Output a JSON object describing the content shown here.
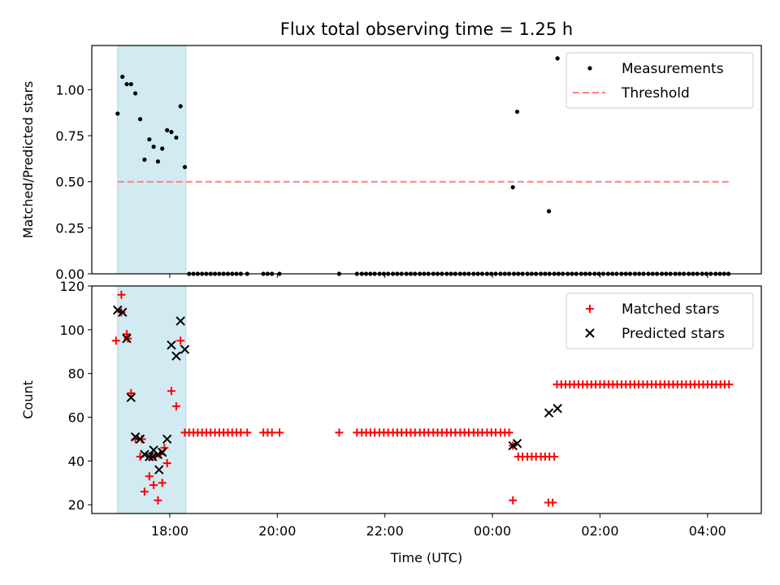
{
  "title": "Flux total observing time = 1.25 h",
  "colors": {
    "shade": "#add8e6",
    "threshold": "#ff8080",
    "matched": "#ff0000",
    "predicted": "#000000",
    "measurement": "#000000"
  },
  "chart_data": [
    {
      "type": "scatter",
      "id": "ratio",
      "ylabel": "Matched/Predicted stars",
      "xlabel": "",
      "xlim": [
        16.55,
        29.0
      ],
      "ylim": [
        0.0,
        1.24
      ],
      "yticks": [
        0.0,
        0.25,
        0.5,
        0.75,
        1.0
      ],
      "ytick_labels": [
        "0.00",
        "0.25",
        "0.50",
        "0.75",
        "1.00"
      ],
      "shaded_region_hours": [
        17.03,
        18.3
      ],
      "legend_position": "upper right",
      "legend": [
        "Measurements",
        "Threshold"
      ],
      "threshold": {
        "name": "Threshold",
        "value": 0.5,
        "x_range": [
          17.03,
          28.4
        ]
      },
      "series": [
        {
          "name": "Measurements",
          "x": [
            17.03,
            17.12,
            17.2,
            17.28,
            17.36,
            17.45,
            17.53,
            17.62,
            17.7,
            17.78,
            17.86,
            17.95,
            18.03,
            18.12,
            18.2,
            18.28,
            18.36,
            18.44,
            18.52,
            18.6,
            18.68,
            18.76,
            18.84,
            18.92,
            19.0,
            19.08,
            19.16,
            19.24,
            19.32,
            19.44,
            19.74,
            19.82,
            19.9,
            20.04,
            21.15,
            21.48,
            21.57,
            21.65,
            21.73,
            21.81,
            21.9,
            21.98,
            22.06,
            22.15,
            22.23,
            22.31,
            22.4,
            22.48,
            22.56,
            22.65,
            22.73,
            22.81,
            22.9,
            22.98,
            23.06,
            23.15,
            23.23,
            23.31,
            23.4,
            23.48,
            23.56,
            23.65,
            23.73,
            23.81,
            23.9,
            23.98,
            24.06,
            24.15,
            24.23,
            24.31,
            24.4,
            24.48,
            24.56,
            24.65,
            24.73,
            24.81,
            24.9,
            24.98,
            25.06,
            25.15,
            25.23,
            25.31,
            25.4,
            25.48,
            25.56,
            25.65,
            25.73,
            25.81,
            25.9,
            25.98,
            26.06,
            26.15,
            26.23,
            26.31,
            26.4,
            26.48,
            26.56,
            26.65,
            26.73,
            26.81,
            26.9,
            26.98,
            27.06,
            27.15,
            27.23,
            27.31,
            27.4,
            27.48,
            27.56,
            27.65,
            27.73,
            27.81,
            27.9,
            27.98,
            28.06,
            28.15,
            28.23,
            28.31,
            28.39,
            24.38,
            24.46,
            25.05,
            25.21
          ],
          "y": [
            0.87,
            1.07,
            1.03,
            1.03,
            0.98,
            0.84,
            0.62,
            0.73,
            0.69,
            0.61,
            0.68,
            0.78,
            0.77,
            0.74,
            0.91,
            0.58,
            0,
            0,
            0,
            0,
            0,
            0,
            0,
            0,
            0,
            0,
            0,
            0,
            0,
            0,
            0,
            0,
            0,
            0,
            0,
            0,
            0,
            0,
            0,
            0,
            0,
            0,
            0,
            0,
            0,
            0,
            0,
            0,
            0,
            0,
            0,
            0,
            0,
            0,
            0,
            0,
            0,
            0,
            0,
            0,
            0,
            0,
            0,
            0,
            0,
            0,
            0,
            0,
            0,
            0,
            0,
            0,
            0,
            0,
            0,
            0,
            0,
            0,
            0,
            0,
            0,
            0,
            0,
            0,
            0,
            0,
            0,
            0,
            0,
            0,
            0,
            0,
            0,
            0,
            0,
            0,
            0,
            0,
            0,
            0,
            0,
            0,
            0,
            0,
            0,
            0,
            0,
            0,
            0,
            0,
            0,
            0,
            0,
            0,
            0,
            0,
            0,
            0,
            0,
            0.47,
            0.88,
            0.34,
            1.17
          ]
        }
      ]
    },
    {
      "type": "scatter",
      "id": "count",
      "ylabel": "Count",
      "xlabel": "Time (UTC)",
      "xlim": [
        16.55,
        29.0
      ],
      "ylim": [
        16,
        120
      ],
      "yticks": [
        20,
        40,
        60,
        80,
        100,
        120
      ],
      "ytick_labels": [
        "20",
        "40",
        "60",
        "80",
        "100",
        "120"
      ],
      "xticks": [
        18,
        20,
        22,
        24,
        26,
        28
      ],
      "xtick_labels": [
        "18:00",
        "20:00",
        "22:00",
        "00:00",
        "02:00",
        "04:00"
      ],
      "shaded_region_hours": [
        17.03,
        18.3
      ],
      "legend_position": "upper right",
      "legend": [
        "Matched stars",
        "Predicted stars"
      ],
      "series": [
        {
          "name": "Matched stars",
          "marker": "plus",
          "x": [
            17.0,
            17.1,
            17.2,
            17.28,
            17.36,
            17.45,
            17.53,
            17.62,
            17.7,
            17.78,
            17.86,
            17.95,
            18.03,
            18.12,
            18.2,
            18.28,
            18.36,
            18.44,
            18.52,
            18.6,
            18.68,
            18.76,
            18.84,
            18.92,
            19.0,
            19.08,
            19.16,
            19.24,
            19.32,
            19.44,
            19.74,
            19.82,
            19.9,
            20.04,
            21.15,
            21.48,
            21.57,
            21.65,
            21.73,
            21.81,
            21.9,
            21.98,
            22.06,
            22.15,
            22.23,
            22.31,
            22.4,
            22.48,
            22.56,
            22.65,
            22.73,
            22.81,
            22.9,
            22.98,
            23.06,
            23.15,
            23.23,
            23.31,
            23.4,
            23.48,
            23.56,
            23.65,
            23.73,
            23.81,
            23.9,
            23.98,
            24.06,
            24.15,
            24.23,
            24.31,
            24.38,
            24.48,
            24.56,
            24.65,
            24.73,
            24.81,
            24.9,
            24.98,
            25.06,
            25.15,
            25.2,
            25.28,
            25.36,
            25.44,
            25.52,
            25.6,
            25.68,
            25.76,
            25.84,
            25.92,
            26.0,
            26.08,
            26.16,
            26.24,
            26.32,
            26.4,
            26.48,
            26.56,
            26.64,
            26.72,
            26.8,
            26.88,
            26.96,
            27.04,
            27.12,
            27.2,
            27.28,
            27.36,
            27.44,
            27.52,
            27.6,
            27.68,
            27.76,
            27.84,
            27.92,
            28.0,
            28.08,
            28.16,
            28.24,
            28.32,
            28.4,
            24.38,
            25.04,
            25.12,
            17.1,
            17.22,
            17.48,
            17.65,
            17.73,
            17.82,
            17.9
          ],
          "y": [
            95,
            116,
            98,
            71,
            50,
            42,
            26,
            33,
            29,
            22,
            30,
            39,
            72,
            65,
            95,
            53,
            53,
            53,
            53,
            53,
            53,
            53,
            53,
            53,
            53,
            53,
            53,
            53,
            53,
            53,
            53,
            53,
            53,
            53,
            53,
            53,
            53,
            53,
            53,
            53,
            53,
            53,
            53,
            53,
            53,
            53,
            53,
            53,
            53,
            53,
            53,
            53,
            53,
            53,
            53,
            53,
            53,
            53,
            53,
            53,
            53,
            53,
            53,
            53,
            53,
            53,
            53,
            53,
            53,
            53,
            47,
            42,
            42,
            42,
            42,
            42,
            42,
            42,
            42,
            42,
            75,
            75,
            75,
            75,
            75,
            75,
            75,
            75,
            75,
            75,
            75,
            75,
            75,
            75,
            75,
            75,
            75,
            75,
            75,
            75,
            75,
            75,
            75,
            75,
            75,
            75,
            75,
            75,
            75,
            75,
            75,
            75,
            75,
            75,
            75,
            75,
            75,
            75,
            75,
            75,
            75,
            22,
            21,
            21,
            108,
            96,
            50,
            42,
            42,
            43,
            46
          ]
        },
        {
          "name": "Predicted stars",
          "marker": "x",
          "x": [
            17.03,
            17.12,
            17.2,
            17.28,
            17.36,
            17.45,
            17.53,
            17.62,
            17.7,
            17.78,
            17.86,
            17.95,
            18.03,
            18.12,
            18.2,
            18.28,
            24.38,
            24.46,
            25.05,
            25.21,
            17.68,
            17.8
          ],
          "y": [
            109,
            108,
            96,
            69,
            51,
            50,
            43,
            42,
            45,
            43,
            44,
            50,
            93,
            88,
            104,
            91,
            47,
            48,
            62,
            64,
            42,
            36
          ]
        }
      ]
    }
  ]
}
